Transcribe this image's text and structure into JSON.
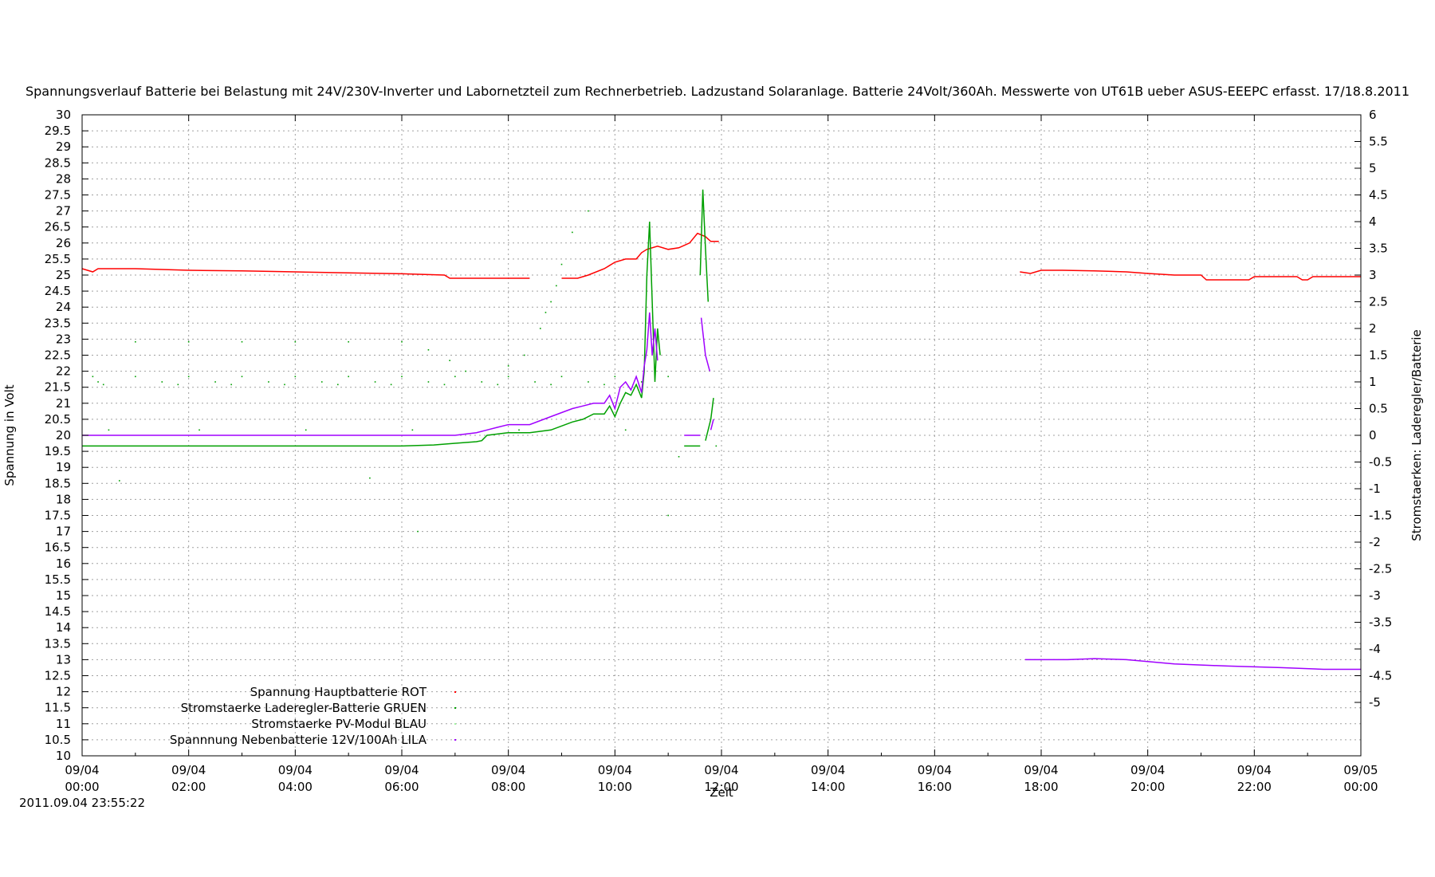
{
  "chart_data": {
    "type": "line",
    "title": "Spannungsverlauf Batterie bei Belastung mit 24V/230V-Inverter und Labornetzteil zum Rechnerbetrieb. Ladzustand Solaranlage. Batterie 24Volt/360Ah. Messwerte von UT61B ueber ASUS-EEEPC erfasst. 17/18.8.2011",
    "xlabel": "Zeit",
    "ylabel": "Spannung in Volt",
    "y2label": "Stromstaerken: Laderegler/Batterie",
    "ylim": [
      10,
      30
    ],
    "y2lim": [
      -6,
      6
    ],
    "xlim_hours": [
      0,
      24
    ],
    "x_ticks": [
      {
        "h": 0,
        "l1": "09/04",
        "l2": "00:00"
      },
      {
        "h": 2,
        "l1": "09/04",
        "l2": "02:00"
      },
      {
        "h": 4,
        "l1": "09/04",
        "l2": "04:00"
      },
      {
        "h": 6,
        "l1": "09/04",
        "l2": "06:00"
      },
      {
        "h": 8,
        "l1": "09/04",
        "l2": "08:00"
      },
      {
        "h": 10,
        "l1": "09/04",
        "l2": "10:00"
      },
      {
        "h": 12,
        "l1": "09/04",
        "l2": "12:00"
      },
      {
        "h": 14,
        "l1": "09/04",
        "l2": "14:00"
      },
      {
        "h": 16,
        "l1": "09/04",
        "l2": "16:00"
      },
      {
        "h": 18,
        "l1": "09/04",
        "l2": "18:00"
      },
      {
        "h": 20,
        "l1": "09/04",
        "l2": "20:00"
      },
      {
        "h": 22,
        "l1": "09/04",
        "l2": "22:00"
      },
      {
        "h": 24,
        "l1": "09/05",
        "l2": "00:00"
      }
    ],
    "y_ticks": [
      "10",
      "10.5",
      "11",
      "11.5",
      "12",
      "12.5",
      "13",
      "13.5",
      "14",
      "14.5",
      "15",
      "15.5",
      "16",
      "16.5",
      "17",
      "17.5",
      "18",
      "18.5",
      "19",
      "19.5",
      "20",
      "20.5",
      "21",
      "21.5",
      "22",
      "22.5",
      "23",
      "23.5",
      "24",
      "24.5",
      "25",
      "25.5",
      "26",
      "26.5",
      "27",
      "27.5",
      "28",
      "28.5",
      "29",
      "29.5",
      "30"
    ],
    "y2_ticks": [
      "-5",
      "-4.5",
      "-4",
      "-3.5",
      "-3",
      "-2.5",
      "-2",
      "-1.5",
      "-1",
      "-0.5",
      "0",
      "0.5",
      "1",
      "1.5",
      "2",
      "2.5",
      "3",
      "3.5",
      "4",
      "4.5",
      "5",
      "5.5",
      "6"
    ],
    "grid": true,
    "legend_position": "bottom-left",
    "series": [
      {
        "name": "Spannung Hauptbatterie ROT",
        "axis": "y",
        "color": "#ff0000",
        "segments": [
          [
            [
              0,
              25.2
            ],
            [
              0.2,
              25.1
            ],
            [
              0.3,
              25.2
            ],
            [
              1,
              25.2
            ],
            [
              2,
              25.15
            ],
            [
              3,
              25.13
            ],
            [
              4,
              25.1
            ],
            [
              5,
              25.07
            ],
            [
              6,
              25.04
            ],
            [
              6.8,
              25.0
            ],
            [
              6.9,
              24.9
            ],
            [
              7.5,
              24.9
            ],
            [
              8,
              24.9
            ],
            [
              8.4,
              24.9
            ]
          ],
          [
            [
              9.0,
              24.9
            ],
            [
              9.3,
              24.9
            ],
            [
              9.5,
              25.0
            ],
            [
              9.8,
              25.2
            ],
            [
              10.0,
              25.4
            ],
            [
              10.2,
              25.5
            ],
            [
              10.4,
              25.5
            ],
            [
              10.5,
              25.7
            ],
            [
              10.6,
              25.8
            ],
            [
              10.8,
              25.9
            ],
            [
              11.0,
              25.8
            ],
            [
              11.2,
              25.85
            ],
            [
              11.4,
              26.0
            ],
            [
              11.55,
              26.3
            ],
            [
              11.7,
              26.2
            ],
            [
              11.8,
              26.05
            ],
            [
              11.95,
              26.05
            ]
          ],
          [
            [
              17.6,
              25.1
            ],
            [
              17.8,
              25.05
            ],
            [
              18.0,
              25.15
            ],
            [
              18.4,
              25.15
            ],
            [
              19.0,
              25.13
            ],
            [
              19.6,
              25.1
            ],
            [
              20.0,
              25.05
            ],
            [
              20.5,
              25.0
            ],
            [
              21.0,
              25.0
            ],
            [
              21.1,
              24.85
            ],
            [
              21.5,
              24.85
            ],
            [
              21.9,
              24.85
            ],
            [
              22.0,
              24.95
            ],
            [
              22.4,
              24.95
            ],
            [
              22.8,
              24.95
            ],
            [
              22.9,
              24.85
            ],
            [
              23.0,
              24.85
            ],
            [
              23.1,
              24.95
            ],
            [
              24.0,
              24.95
            ]
          ]
        ]
      },
      {
        "name": "Stromstaerke Laderegler-Batterie GRUEN",
        "axis": "y2",
        "color": "#00a000",
        "segments": [
          [
            [
              0,
              -0.2
            ],
            [
              6,
              -0.2
            ],
            [
              6.6,
              -0.18
            ],
            [
              7.0,
              -0.15
            ],
            [
              7.4,
              -0.12
            ],
            [
              7.5,
              -0.1
            ],
            [
              7.6,
              0.0
            ],
            [
              8.0,
              0.05
            ],
            [
              8.4,
              0.05
            ],
            [
              8.8,
              0.1
            ],
            [
              9.2,
              0.25
            ],
            [
              9.4,
              0.3
            ],
            [
              9.6,
              0.4
            ],
            [
              9.8,
              0.4
            ],
            [
              9.9,
              0.55
            ],
            [
              10.0,
              0.35
            ],
            [
              10.1,
              0.6
            ],
            [
              10.2,
              0.8
            ],
            [
              10.3,
              0.75
            ],
            [
              10.4,
              0.95
            ],
            [
              10.5,
              0.7
            ],
            [
              10.55,
              1.2
            ],
            [
              10.6,
              3.0
            ],
            [
              10.65,
              4.0
            ],
            [
              10.7,
              2.5
            ],
            [
              10.75,
              1.0
            ],
            [
              10.8,
              2.0
            ],
            [
              10.85,
              1.5
            ]
          ],
          [
            [
              11.3,
              -0.2
            ],
            [
              11.6,
              -0.2
            ]
          ],
          [
            [
              11.6,
              3.0
            ],
            [
              11.65,
              4.6
            ],
            [
              11.7,
              3.5
            ],
            [
              11.75,
              2.5
            ]
          ],
          [
            [
              11.7,
              -0.1
            ],
            [
              11.8,
              0.3
            ],
            [
              11.85,
              0.7
            ]
          ]
        ]
      },
      {
        "name": "Stromstaerke PV-Modul BLAU",
        "axis": "y2",
        "color": "#a0f0a0",
        "segments": []
      },
      {
        "name": "Spannnung Nebenbatterie 12V/100Ah LILA",
        "axis": "y2",
        "color": "#a000ff",
        "segments": [
          [
            [
              0,
              0.0
            ],
            [
              7.0,
              0.0
            ],
            [
              7.4,
              0.05
            ],
            [
              7.6,
              0.1
            ],
            [
              7.8,
              0.15
            ],
            [
              8.0,
              0.2
            ],
            [
              8.4,
              0.2
            ],
            [
              8.8,
              0.35
            ],
            [
              9.2,
              0.5
            ],
            [
              9.4,
              0.55
            ],
            [
              9.6,
              0.6
            ],
            [
              9.8,
              0.6
            ],
            [
              9.9,
              0.75
            ],
            [
              10.0,
              0.5
            ],
            [
              10.1,
              0.9
            ],
            [
              10.2,
              1.0
            ],
            [
              10.3,
              0.85
            ],
            [
              10.4,
              1.1
            ],
            [
              10.5,
              0.8
            ],
            [
              10.55,
              1.3
            ],
            [
              10.6,
              1.6
            ],
            [
              10.65,
              2.3
            ],
            [
              10.7,
              1.5
            ],
            [
              10.75,
              2.0
            ],
            [
              10.8,
              1.4
            ]
          ],
          [
            [
              11.3,
              0.0
            ],
            [
              11.6,
              0.0
            ]
          ],
          [
            [
              11.62,
              2.2
            ],
            [
              11.7,
              1.5
            ],
            [
              11.78,
              1.2
            ]
          ],
          [
            [
              11.8,
              0.1
            ],
            [
              11.85,
              0.3
            ]
          ],
          [
            [
              17.7,
              -4.2
            ],
            [
              18.5,
              -4.2
            ],
            [
              19.0,
              -4.18
            ],
            [
              19.6,
              -4.2
            ],
            [
              20.5,
              -4.28
            ],
            [
              21.5,
              -4.32
            ],
            [
              22.5,
              -4.35
            ],
            [
              23.3,
              -4.38
            ],
            [
              24.0,
              -4.38
            ]
          ]
        ]
      }
    ],
    "scatter": [
      {
        "color": "#00a000",
        "axis": "y2",
        "points": [
          [
            0.2,
            1.1
          ],
          [
            1,
            1.1
          ],
          [
            2,
            1.1
          ],
          [
            3,
            1.1
          ],
          [
            4,
            1.1
          ],
          [
            5,
            1.1
          ],
          [
            6,
            1.1
          ],
          [
            7,
            1.1
          ],
          [
            8,
            1.1
          ],
          [
            9,
            1.1
          ],
          [
            10,
            1.1
          ],
          [
            11,
            1.1
          ],
          [
            0.3,
            1.0
          ],
          [
            1.5,
            1.0
          ],
          [
            2.5,
            1.0
          ],
          [
            3.5,
            1.0
          ],
          [
            4.5,
            1.0
          ],
          [
            5.5,
            1.0
          ],
          [
            6.5,
            1.0
          ],
          [
            7.5,
            1.0
          ],
          [
            8.5,
            1.0
          ],
          [
            9.5,
            1.0
          ],
          [
            10.5,
            1.0
          ],
          [
            0.4,
            0.95
          ],
          [
            1.8,
            0.95
          ],
          [
            2.8,
            0.95
          ],
          [
            3.8,
            0.95
          ],
          [
            4.8,
            0.95
          ],
          [
            5.8,
            0.95
          ],
          [
            6.8,
            0.95
          ],
          [
            7.8,
            0.95
          ],
          [
            8.8,
            0.95
          ],
          [
            9.8,
            0.95
          ],
          [
            1,
            1.75
          ],
          [
            2,
            1.75
          ],
          [
            3,
            1.75
          ],
          [
            4,
            1.75
          ],
          [
            5,
            1.75
          ],
          [
            6,
            1.75
          ],
          [
            0.5,
            0.1
          ],
          [
            2.2,
            0.1
          ],
          [
            4.2,
            0.1
          ],
          [
            6.2,
            0.1
          ],
          [
            8.2,
            0.1
          ],
          [
            10.2,
            0.1
          ],
          [
            6.5,
            1.6
          ],
          [
            6.9,
            1.4
          ],
          [
            7.2,
            1.2
          ],
          [
            8.0,
            1.3
          ],
          [
            8.3,
            1.5
          ],
          [
            8.6,
            2.0
          ],
          [
            8.8,
            2.5
          ],
          [
            9.0,
            3.2
          ],
          [
            9.2,
            3.8
          ],
          [
            9.5,
            4.2
          ],
          [
            8.7,
            2.3
          ],
          [
            8.9,
            2.8
          ],
          [
            11.0,
            -1.5
          ],
          [
            5.4,
            -0.8
          ],
          [
            0.7,
            -0.85
          ],
          [
            6.3,
            -1.8
          ],
          [
            11.2,
            -0.4
          ],
          [
            11.9,
            -0.2
          ]
        ]
      }
    ],
    "legend_entries": [
      "Spannung Hauptbatterie ROT",
      "Stromstaerke Laderegler-Batterie GRUEN",
      "Stromstaerke PV-Modul BLAU",
      "Spannnung Nebenbatterie 12V/100Ah LILA"
    ]
  },
  "timestamp": "2011.09.04 23:55:22"
}
